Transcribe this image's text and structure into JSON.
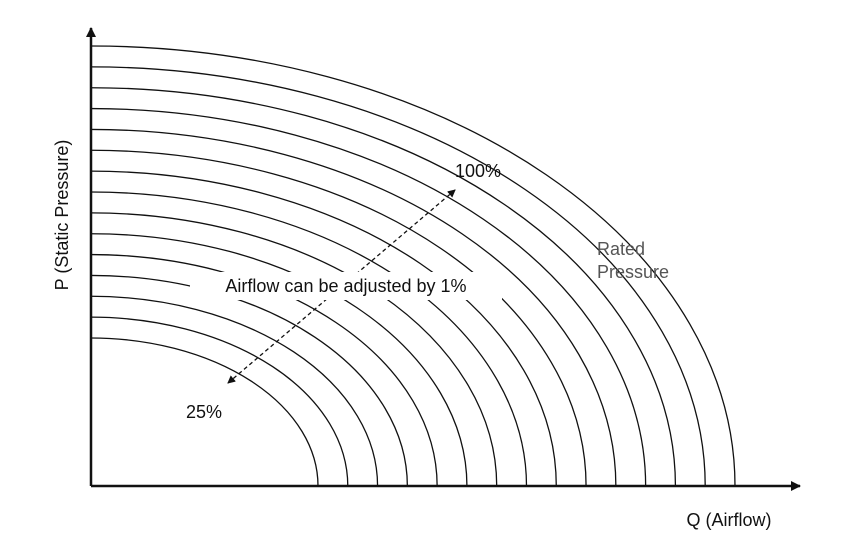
{
  "axes": {
    "y_label": "P (Static Pressure)",
    "x_label": "Q (Airflow)"
  },
  "labels": {
    "max": "100%",
    "min": "25%",
    "adjust": "Airflow can be adjusted by 1%",
    "rated_pressure": [
      "Rated",
      "Pressure"
    ]
  }
}
